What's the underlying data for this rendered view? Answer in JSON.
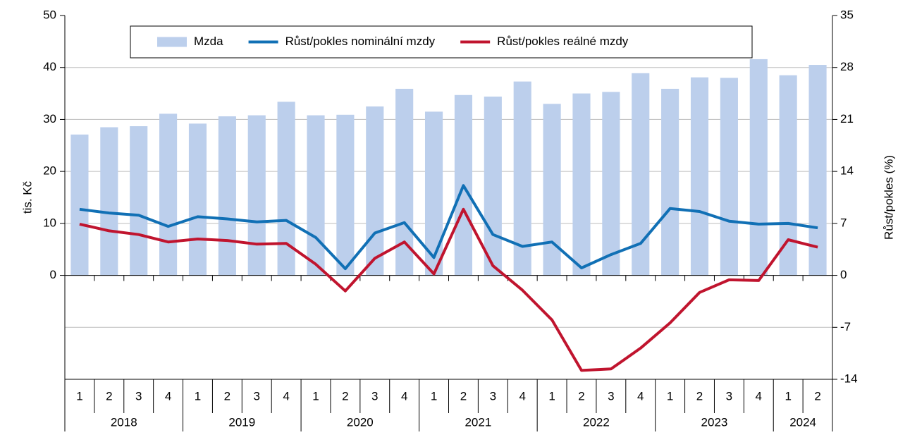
{
  "chart_data": {
    "type": "bar-line",
    "categories": [
      "1",
      "2",
      "3",
      "4",
      "1",
      "2",
      "3",
      "4",
      "1",
      "2",
      "3",
      "4",
      "1",
      "2",
      "3",
      "4",
      "1",
      "2",
      "3",
      "4",
      "1",
      "2",
      "3",
      "4",
      "1",
      "2"
    ],
    "years": [
      "2018",
      "2019",
      "2020",
      "2021",
      "2022",
      "2023",
      "2024"
    ],
    "y_label": "tis. Kč",
    "y2_label": "Růst/pokles (%)",
    "ylim": [
      -20,
      50
    ],
    "yticks": [
      0,
      10,
      20,
      30,
      40,
      50
    ],
    "y2lim": [
      -14,
      35
    ],
    "y2ticks": [
      -14,
      -7,
      0,
      7,
      14,
      21,
      28,
      35
    ],
    "grid": true,
    "legend": "top",
    "series": [
      {
        "name": "Mzda",
        "type": "bar",
        "color": "#bccfec",
        "values": [
          27.1,
          28.5,
          28.7,
          31.1,
          29.2,
          30.6,
          30.8,
          33.4,
          30.8,
          30.9,
          32.5,
          35.9,
          31.5,
          34.7,
          34.4,
          37.3,
          33.0,
          35.0,
          35.3,
          38.9,
          35.9,
          38.1,
          38.0,
          41.6,
          38.5,
          40.5
        ]
      },
      {
        "name": "Růst/pokles nominální mzdy",
        "type": "line",
        "axis": "y2",
        "color": "#1170b5",
        "values": [
          8.9,
          8.4,
          8.1,
          6.6,
          7.9,
          7.6,
          7.2,
          7.4,
          5.1,
          0.9,
          5.7,
          7.1,
          2.4,
          12.1,
          5.5,
          3.9,
          4.5,
          1.0,
          2.8,
          4.3,
          9.0,
          8.6,
          7.3,
          6.9,
          7.0,
          6.4
        ]
      },
      {
        "name": "Růst/pokles reálné mzdy",
        "type": "line",
        "axis": "y2",
        "color": "#c0142e",
        "values": [
          6.9,
          6.0,
          5.5,
          4.5,
          4.9,
          4.7,
          4.2,
          4.3,
          1.5,
          -2.1,
          2.3,
          4.5,
          0.2,
          8.9,
          1.3,
          -2.0,
          -6.0,
          -12.8,
          -12.6,
          -9.8,
          -6.4,
          -2.3,
          -0.6,
          -0.7,
          4.8,
          3.8
        ]
      }
    ]
  }
}
